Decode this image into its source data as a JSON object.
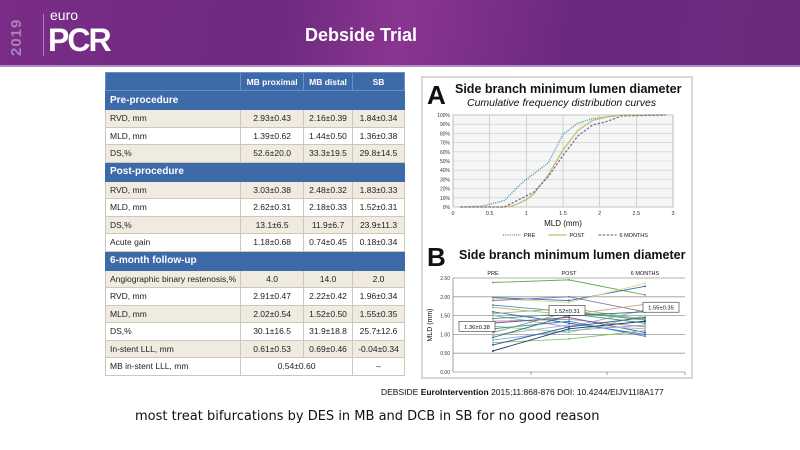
{
  "header": {
    "logo_year": "2019",
    "logo_euro": "euro",
    "logo_pcr": "PCR",
    "title": "Debside Trial",
    "colors": {
      "bg": "#6e2a80",
      "accent": "#a983b8"
    }
  },
  "table": {
    "columns": [
      "",
      "MB proximal",
      "MB distal",
      "SB"
    ],
    "sections": [
      {
        "title": "Pre-procedure",
        "rows": [
          {
            "label": "RVD, mm",
            "values": [
              "2.93±0.43",
              "2.16±0.39",
              "1.84±0.34"
            ]
          },
          {
            "label": "MLD, mm",
            "values": [
              "1.39±0.62",
              "1.44±0.50",
              "1.36±0.38"
            ]
          },
          {
            "label": "DS,%",
            "values": [
              "52.6±20.0",
              "33.3±19.5",
              "29.8±14.5"
            ]
          }
        ]
      },
      {
        "title": "Post-procedure",
        "rows": [
          {
            "label": "RVD, mm",
            "values": [
              "3.03±0.38",
              "2.48±0.32",
              "1.83±0.33"
            ]
          },
          {
            "label": "MLD, mm",
            "values": [
              "2.62±0.31",
              "2.18±0.33",
              "1.52±0.31"
            ]
          },
          {
            "label": "DS,%",
            "values": [
              "13.1±6.5",
              "11.9±6.7",
              "23.9±11.3"
            ]
          },
          {
            "label": "Acute gain",
            "values": [
              "1.18±0.68",
              "0.74±0.45",
              "0.18±0.34"
            ]
          }
        ]
      },
      {
        "title": "6-month follow-up",
        "rows": [
          {
            "label": "Angiographic binary restenosis,%",
            "values": [
              "4.0",
              "14.0",
              "2.0"
            ]
          },
          {
            "label": "RVD, mm",
            "values": [
              "2.91±0.47",
              "2.22±0.42",
              "1.96±0.34"
            ]
          },
          {
            "label": "MLD, mm",
            "values": [
              "2.02±0.54",
              "1.52±0.50",
              "1.55±0.35"
            ]
          },
          {
            "label": "DS,%",
            "values": [
              "30.1±16.5",
              "31.9±18.8",
              "25.7±12.6"
            ]
          },
          {
            "label": "In-stent LLL, mm",
            "values": [
              "0.61±0.53",
              "0.69±0.46",
              "-0.04±0.34"
            ]
          },
          {
            "label": "MB in-stent LLL, mm",
            "merged_value": "0.54±0.60",
            "sb_value": "–"
          }
        ]
      }
    ]
  },
  "chart_data": [
    {
      "type": "line",
      "panel_letter": "A",
      "title": "Side branch minimum lumen diameter",
      "subtitle": "Cumulative frequency distribution curves",
      "xlabel": "MLD (mm)",
      "ylabel": "",
      "xlim": [
        0,
        3
      ],
      "ylim": [
        0,
        100
      ],
      "x_ticks": [
        "0",
        "0.5",
        "1",
        "1.5",
        "2",
        "2.5",
        "3"
      ],
      "y_ticks": [
        "0%",
        "10%",
        "20%",
        "30%",
        "40%",
        "50%",
        "60%",
        "70%",
        "80%",
        "90%",
        "100%"
      ],
      "grid": true,
      "legend_position": "bottom",
      "series": [
        {
          "name": "PRE",
          "color": "#3b8fa0",
          "dash": "dotted",
          "x": [
            0.1,
            0.4,
            0.5,
            0.7,
            0.9,
            1.0,
            1.3,
            1.5,
            1.7,
            1.9,
            2.1,
            2.3,
            2.9
          ],
          "y": [
            0,
            1,
            3,
            7,
            23,
            30,
            48,
            79,
            91,
            96,
            98,
            100,
            100
          ]
        },
        {
          "name": "POST",
          "color": "#b9c46a",
          "dash": "solid",
          "x": [
            0.1,
            0.7,
            0.8,
            0.9,
            1.0,
            1.1,
            1.3,
            1.5,
            1.7,
            1.9,
            2.1,
            2.3,
            2.9
          ],
          "y": [
            0,
            0,
            1,
            4,
            8,
            14,
            35,
            62,
            83,
            94,
            98,
            100,
            100
          ]
        },
        {
          "name": "6 MONTHS",
          "color": "#8a6aa8",
          "dash": "dashed",
          "x": [
            0.1,
            0.7,
            0.9,
            1.1,
            1.3,
            1.5,
            1.7,
            1.9,
            2.1,
            2.3,
            2.9
          ],
          "y": [
            0,
            0,
            8,
            16,
            33,
            56,
            77,
            89,
            93,
            99,
            100
          ]
        }
      ]
    },
    {
      "type": "line",
      "panel_letter": "B",
      "title": "Side branch minimum lumen diameter",
      "xlabel": "",
      "ylabel": "MLD (mm)",
      "categories": [
        "PRE",
        "POST",
        "6 MONTHS"
      ],
      "ylim": [
        0,
        2.5
      ],
      "y_ticks": [
        "0.00",
        "0.50",
        "1.00",
        "1.50",
        "2.00",
        "2.50"
      ],
      "grid": true,
      "annotations": [
        "1.36±0.38",
        "1.52±0.31",
        "1.55±0.35"
      ],
      "means": [
        1.36,
        1.52,
        1.55
      ],
      "series": [
        {
          "name": "patient",
          "color": "#6bb04a",
          "values": [
            2.38,
            2.45,
            2.05
          ]
        },
        {
          "name": "patient",
          "color": "#2f6db3",
          "values": [
            1.98,
            1.9,
            2.28
          ]
        },
        {
          "name": "patient",
          "color": "#d9d98a",
          "values": [
            1.95,
            1.85,
            2.36
          ]
        },
        {
          "name": "patient",
          "color": "#7a7aa8",
          "values": [
            1.9,
            2.0,
            1.6
          ]
        },
        {
          "name": "patient",
          "color": "#4a90c0",
          "values": [
            1.78,
            1.6,
            1.42
          ]
        },
        {
          "name": "patient",
          "color": "#c9a86a",
          "values": [
            1.72,
            1.52,
            1.8
          ]
        },
        {
          "name": "patient",
          "color": "#2f6db3",
          "values": [
            1.6,
            1.3,
            1.0
          ]
        },
        {
          "name": "patient",
          "color": "#8fc07a",
          "values": [
            1.55,
            1.7,
            1.4
          ]
        },
        {
          "name": "patient",
          "color": "#a0a0c8",
          "values": [
            1.5,
            1.2,
            1.65
          ]
        },
        {
          "name": "patient",
          "color": "#3a9a8a",
          "values": [
            1.42,
            1.55,
            1.3
          ]
        },
        {
          "name": "patient",
          "color": "#d08a8a",
          "values": [
            1.35,
            1.4,
            1.2
          ]
        },
        {
          "name": "patient",
          "color": "#5a5ab0",
          "values": [
            1.3,
            1.45,
            1.05
          ]
        },
        {
          "name": "patient",
          "color": "#9ad07a",
          "values": [
            1.22,
            1.05,
            1.5
          ]
        },
        {
          "name": "patient",
          "color": "#4a80c0",
          "values": [
            1.15,
            1.35,
            0.95
          ]
        },
        {
          "name": "patient",
          "color": "#6aaa5a",
          "values": [
            1.05,
            1.6,
            1.38
          ]
        },
        {
          "name": "patient",
          "color": "#b0b0d0",
          "values": [
            0.98,
            1.25,
            1.15
          ]
        },
        {
          "name": "patient",
          "color": "#2a7a6a",
          "values": [
            0.92,
            1.5,
            1.6
          ]
        },
        {
          "name": "patient",
          "color": "#7ab0d8",
          "values": [
            0.85,
            1.1,
            1.25
          ]
        },
        {
          "name": "patient",
          "color": "#8ac06a",
          "values": [
            0.78,
            0.88,
            1.1
          ]
        },
        {
          "name": "patient",
          "color": "#3a5aa0",
          "values": [
            0.72,
            1.2,
            1.45
          ]
        },
        {
          "name": "patient",
          "color": "#1a3a6a",
          "values": [
            0.56,
            1.15,
            1.35
          ]
        }
      ]
    }
  ],
  "reference": {
    "prefix": "DEBSIDE ",
    "journal": "EuroIntervention",
    "citation": " 2015;11:868-876  DOI: 10.4244/EIJV11I8A177"
  },
  "caption": "most treat bifurcations by DES in MB and DCB in SB for no good reason"
}
